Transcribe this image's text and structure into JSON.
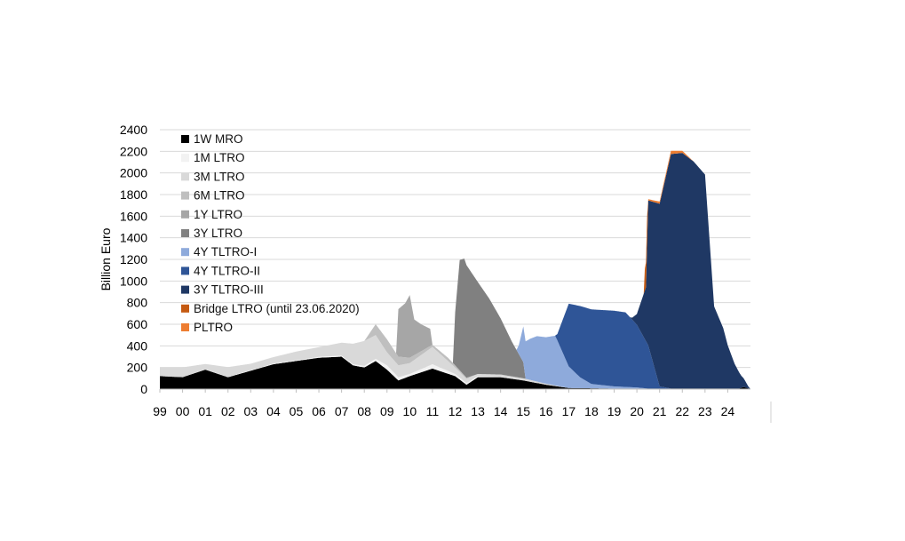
{
  "chart_data": {
    "type": "area",
    "stacked": true,
    "ylabel": "Billion Euro",
    "xlabel": "",
    "ylim": [
      0,
      2400
    ],
    "yticks": [
      "0",
      "200",
      "400",
      "600",
      "800",
      "1000",
      "1200",
      "1400",
      "1600",
      "1800",
      "2000",
      "2200",
      "2400"
    ],
    "xticks": [
      "99",
      "00",
      "01",
      "02",
      "03",
      "04",
      "05",
      "06",
      "07",
      "08",
      "09",
      "10",
      "11",
      "12",
      "13",
      "14",
      "15",
      "16",
      "17",
      "18",
      "19",
      "20",
      "21",
      "22",
      "23",
      "24"
    ],
    "xlim": [
      1999.0,
      2025.0
    ],
    "grid": "horizontal",
    "legend_position": "top-left",
    "series": [
      {
        "name": "1W MRO",
        "color": "#000000",
        "values": [
          [
            1999.0,
            120
          ],
          [
            2000.0,
            110
          ],
          [
            2001.0,
            180
          ],
          [
            2002.0,
            110
          ],
          [
            2003.0,
            170
          ],
          [
            2004.0,
            230
          ],
          [
            2005.0,
            260
          ],
          [
            2006.0,
            290
          ],
          [
            2007.0,
            300
          ],
          [
            2007.5,
            220
          ],
          [
            2008.0,
            200
          ],
          [
            2008.5,
            260
          ],
          [
            2009.0,
            180
          ],
          [
            2009.5,
            80
          ],
          [
            2010.0,
            120
          ],
          [
            2011.0,
            190
          ],
          [
            2012.0,
            120
          ],
          [
            2012.5,
            40
          ],
          [
            2013.0,
            110
          ],
          [
            2014.0,
            110
          ],
          [
            2015.0,
            80
          ],
          [
            2016.0,
            40
          ],
          [
            2017.0,
            10
          ],
          [
            2019.0,
            5
          ],
          [
            2024.5,
            5
          ],
          [
            2024.7,
            20
          ],
          [
            2025.0,
            0
          ]
        ]
      },
      {
        "name": "1M LTRO",
        "color": "#f2f2f2",
        "values": [
          [
            1999.0,
            0
          ],
          [
            2007.5,
            10
          ],
          [
            2008.5,
            20
          ],
          [
            2009.0,
            40
          ],
          [
            2010.0,
            20
          ],
          [
            2011.0,
            40
          ],
          [
            2012.0,
            20
          ],
          [
            2013.0,
            10
          ],
          [
            2014.0,
            5
          ],
          [
            2015.0,
            0
          ],
          [
            2025.0,
            0
          ]
        ]
      },
      {
        "name": "3M LTRO",
        "color": "#d9d9d9",
        "values": [
          [
            1999.0,
            80
          ],
          [
            2000.0,
            90
          ],
          [
            2001.0,
            50
          ],
          [
            2002.0,
            90
          ],
          [
            2003.0,
            60
          ],
          [
            2004.0,
            60
          ],
          [
            2005.0,
            80
          ],
          [
            2006.0,
            90
          ],
          [
            2007.0,
            120
          ],
          [
            2007.5,
            190
          ],
          [
            2008.0,
            230
          ],
          [
            2008.5,
            220
          ],
          [
            2009.0,
            120
          ],
          [
            2010.0,
            100
          ],
          [
            2011.0,
            160
          ],
          [
            2012.0,
            60
          ],
          [
            2013.0,
            20
          ],
          [
            2014.0,
            20
          ],
          [
            2015.0,
            20
          ],
          [
            2016.0,
            10
          ],
          [
            2017.0,
            0
          ],
          [
            2025.0,
            0
          ]
        ]
      },
      {
        "name": "6M LTRO",
        "color": "#bfbfbf",
        "values": [
          [
            1999.0,
            0
          ],
          [
            2008.0,
            0
          ],
          [
            2008.5,
            100
          ],
          [
            2009.0,
            120
          ],
          [
            2009.5,
            80
          ],
          [
            2010.0,
            50
          ],
          [
            2011.0,
            20
          ],
          [
            2011.7,
            30
          ],
          [
            2012.0,
            20
          ],
          [
            2013.0,
            0
          ],
          [
            2025.0,
            0
          ]
        ]
      },
      {
        "name": "1Y LTRO",
        "color": "#a6a6a6",
        "values": [
          [
            1999.0,
            0
          ],
          [
            2009.4,
            0
          ],
          [
            2009.5,
            440
          ],
          [
            2009.8,
            500
          ],
          [
            2010.0,
            580
          ],
          [
            2010.2,
            330
          ],
          [
            2010.5,
            250
          ],
          [
            2010.9,
            160
          ],
          [
            2011.0,
            0
          ],
          [
            2025.0,
            0
          ]
        ]
      },
      {
        "name": "3Y LTRO",
        "color": "#808080",
        "values": [
          [
            1999.0,
            0
          ],
          [
            2011.9,
            0
          ],
          [
            2012.0,
            490
          ],
          [
            2012.2,
            1020
          ],
          [
            2012.4,
            1080
          ],
          [
            2013.0,
            850
          ],
          [
            2013.5,
            700
          ],
          [
            2014.0,
            520
          ],
          [
            2014.5,
            320
          ],
          [
            2015.0,
            150
          ],
          [
            2015.1,
            0
          ],
          [
            2025.0,
            0
          ]
        ]
      },
      {
        "name": "4Y TLTRO-I",
        "color": "#8eaadb",
        "values": [
          [
            1999.0,
            0
          ],
          [
            2014.7,
            0
          ],
          [
            2014.8,
            80
          ],
          [
            2015.0,
            330
          ],
          [
            2015.3,
            380
          ],
          [
            2015.6,
            420
          ],
          [
            2016.0,
            430
          ],
          [
            2016.4,
            460
          ],
          [
            2016.5,
            420
          ],
          [
            2017.0,
            200
          ],
          [
            2017.5,
            100
          ],
          [
            2018.0,
            40
          ],
          [
            2019.0,
            20
          ],
          [
            2020.0,
            10
          ],
          [
            2020.5,
            0
          ],
          [
            2025.0,
            0
          ]
        ]
      },
      {
        "name": "4Y TLTRO-II",
        "color": "#2f5597",
        "values": [
          [
            1999.0,
            0
          ],
          [
            2016.4,
            0
          ],
          [
            2016.5,
            60
          ],
          [
            2017.0,
            580
          ],
          [
            2017.5,
            660
          ],
          [
            2018.0,
            690
          ],
          [
            2019.0,
            700
          ],
          [
            2019.5,
            690
          ],
          [
            2020.0,
            580
          ],
          [
            2020.5,
            400
          ],
          [
            2021.0,
            20
          ],
          [
            2021.5,
            0
          ],
          [
            2025.0,
            0
          ]
        ]
      },
      {
        "name": "3Y TLTRO-III",
        "color": "#1f3864",
        "values": [
          [
            1999.0,
            0
          ],
          [
            2019.7,
            0
          ],
          [
            2019.8,
            20
          ],
          [
            2020.0,
            100
          ],
          [
            2020.4,
            500
          ],
          [
            2020.5,
            1340
          ],
          [
            2021.0,
            1690
          ],
          [
            2021.5,
            2170
          ],
          [
            2022.0,
            2180
          ],
          [
            2022.5,
            2100
          ],
          [
            2023.0,
            1980
          ],
          [
            2023.4,
            760
          ],
          [
            2023.8,
            560
          ],
          [
            2024.0,
            400
          ],
          [
            2024.3,
            230
          ],
          [
            2024.6,
            110
          ],
          [
            2024.9,
            20
          ],
          [
            2025.0,
            0
          ]
        ]
      },
      {
        "name": "Bridge LTRO (until 23.06.2020)",
        "color": "#c55a11",
        "values": [
          [
            1999.0,
            0
          ],
          [
            2020.3,
            0
          ],
          [
            2020.35,
            200
          ],
          [
            2020.45,
            250
          ],
          [
            2020.5,
            0
          ],
          [
            2025.0,
            0
          ]
        ]
      },
      {
        "name": "PLTRO",
        "color": "#ed7d31",
        "values": [
          [
            1999.0,
            0
          ],
          [
            2020.3,
            0
          ],
          [
            2020.4,
            10
          ],
          [
            2021.0,
            20
          ],
          [
            2021.5,
            30
          ],
          [
            2022.0,
            20
          ],
          [
            2022.5,
            0
          ],
          [
            2025.0,
            0
          ]
        ]
      }
    ]
  }
}
